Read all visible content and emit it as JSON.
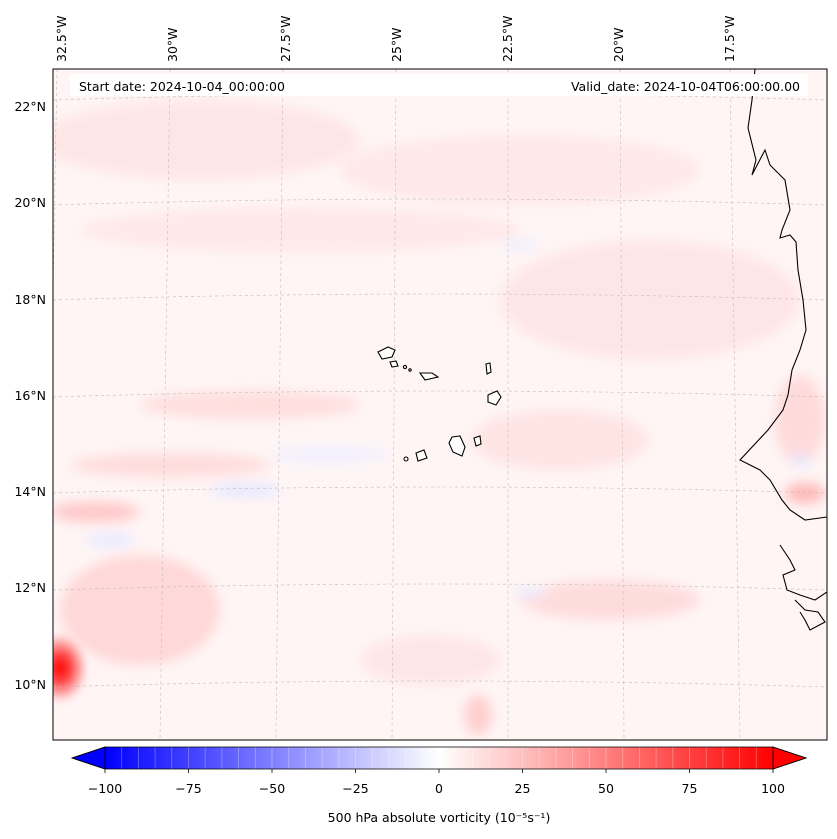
{
  "map": {
    "start_date": "Start date: 2024-10-04_00:00:00",
    "valid_date": "Valid_date: 2024-10-04T06:00:00.00",
    "lon_labels": [
      "32.5°W",
      "30°W",
      "27.5°W",
      "25°W",
      "22.5°W",
      "20°W",
      "17.5°W"
    ],
    "lat_labels": [
      "22°N",
      "20°N",
      "18°N",
      "16°N",
      "14°N",
      "12°N",
      "10°N"
    ],
    "region": "Cape Verde Islands and West African coast"
  },
  "colorbar": {
    "label": "500 hPa absolute vorticity (10⁻⁵s⁻¹)",
    "ticks": [
      "−100",
      "−75",
      "−50",
      "−25",
      "0",
      "25",
      "50",
      "75",
      "100"
    ],
    "min": -100,
    "max": 100,
    "colormap": "bwr",
    "low_color": "#0000ff",
    "mid_color": "#ffffff",
    "high_color": "#ff0000"
  }
}
